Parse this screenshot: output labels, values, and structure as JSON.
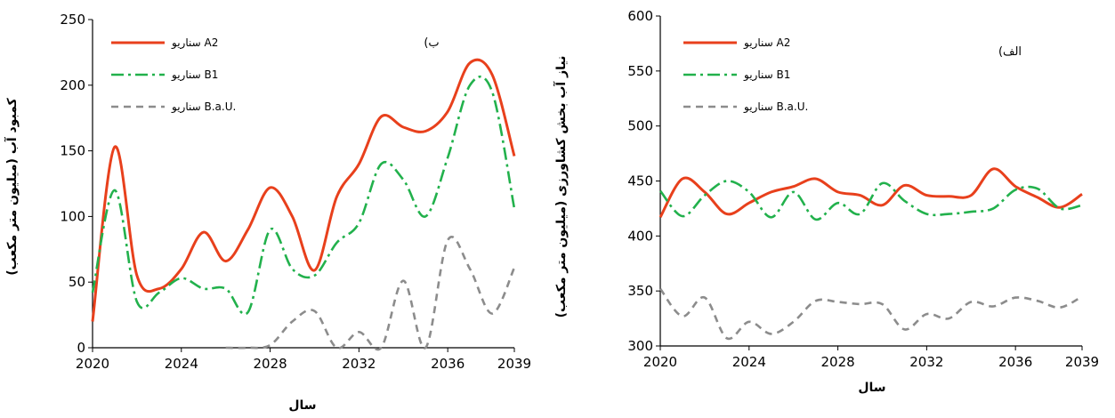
{
  "chart_data": [
    {
      "type": "line",
      "panel_label": "(ب",
      "xlabel": "سال",
      "ylabel": "کمبود آب (میلیون متر مکعب)",
      "ylim": [
        0,
        250
      ],
      "yticks": [
        0,
        50,
        100,
        150,
        200,
        250
      ],
      "xlim": [
        2020,
        2039
      ],
      "xticks": [
        2020,
        2024,
        2028,
        2032,
        2036,
        2039
      ],
      "grid": false,
      "legend_position": "top-left",
      "series": [
        {
          "name": "سناریو A2",
          "color": "#e8401c",
          "style": "solid",
          "x": [
            2020,
            2021,
            2022,
            2023,
            2024,
            2025,
            2026,
            2027,
            2028,
            2029,
            2030,
            2031,
            2032,
            2033,
            2034,
            2035,
            2036,
            2037,
            2038,
            2039
          ],
          "y": [
            20,
            153,
            55,
            45,
            60,
            88,
            66,
            90,
            122,
            100,
            59,
            115,
            140,
            176,
            168,
            165,
            180,
            217,
            208,
            146
          ]
        },
        {
          "name": "سناریو B1",
          "color": "#22b14c",
          "style": "dashdot",
          "x": [
            2020,
            2021,
            2022,
            2023,
            2024,
            2025,
            2026,
            2027,
            2028,
            2029,
            2030,
            2031,
            2032,
            2033,
            2034,
            2035,
            2036,
            2037,
            2038,
            2039
          ],
          "y": [
            42,
            120,
            35,
            42,
            53,
            45,
            45,
            27,
            90,
            60,
            55,
            80,
            95,
            140,
            128,
            100,
            145,
            200,
            195,
            106
          ]
        },
        {
          "name": "سناریو B.a.U.",
          "color": "#8c8c8c",
          "style": "dashed",
          "x": [
            2026,
            2027,
            2028,
            2029,
            2030,
            2031,
            2032,
            2033,
            2034,
            2035,
            2036,
            2037,
            2038,
            2039
          ],
          "y": [
            0,
            0,
            2,
            20,
            28,
            0,
            12,
            0,
            51,
            0,
            82,
            60,
            26,
            61
          ]
        }
      ]
    },
    {
      "type": "line",
      "panel_label": "(الف",
      "xlabel": "سال",
      "ylabel": "نیاز آب بخش کشاورزی (میلیون متر مکعب)",
      "ylim": [
        300,
        600
      ],
      "yticks": [
        300,
        350,
        400,
        450,
        500,
        550,
        600
      ],
      "xlim": [
        2020,
        2039
      ],
      "xticks": [
        2020,
        2024,
        2028,
        2032,
        2036,
        2039
      ],
      "grid": false,
      "legend_position": "top-left",
      "series": [
        {
          "name": "سناریو A2",
          "color": "#e8401c",
          "style": "solid",
          "x": [
            2020,
            2021,
            2022,
            2023,
            2024,
            2025,
            2026,
            2027,
            2028,
            2029,
            2030,
            2031,
            2032,
            2033,
            2034,
            2035,
            2036,
            2037,
            2038,
            2039
          ],
          "y": [
            417,
            452,
            440,
            420,
            430,
            440,
            445,
            452,
            440,
            437,
            428,
            446,
            437,
            436,
            437,
            461,
            445,
            435,
            426,
            438
          ]
        },
        {
          "name": "سناریو B1",
          "color": "#22b14c",
          "style": "dashdot",
          "x": [
            2020,
            2021,
            2022,
            2023,
            2024,
            2025,
            2026,
            2027,
            2028,
            2029,
            2030,
            2031,
            2032,
            2033,
            2034,
            2035,
            2036,
            2037,
            2038,
            2039
          ],
          "y": [
            441,
            418,
            437,
            450,
            440,
            417,
            440,
            415,
            430,
            420,
            448,
            432,
            420,
            420,
            422,
            425,
            442,
            443,
            425,
            428
          ]
        },
        {
          "name": "سناریو B.a.U.",
          "color": "#8c8c8c",
          "style": "dashed",
          "x": [
            2020,
            2021,
            2022,
            2023,
            2024,
            2025,
            2026,
            2027,
            2028,
            2029,
            2030,
            2031,
            2032,
            2033,
            2034,
            2035,
            2036,
            2037,
            2038,
            2039
          ],
          "y": [
            352,
            327,
            344,
            307,
            322,
            311,
            322,
            341,
            340,
            338,
            338,
            315,
            329,
            325,
            340,
            336,
            344,
            341,
            335,
            345
          ]
        }
      ]
    }
  ]
}
